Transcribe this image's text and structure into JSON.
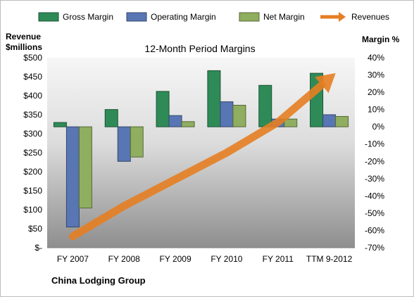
{
  "chart_data": {
    "type": "bar",
    "title": "12-Month Period Margins",
    "company": "China Lodging Group",
    "ylabel_left": [
      "Revenue",
      "$millions"
    ],
    "ylabel_right": "Margin %",
    "categories": [
      "FY 2007",
      "FY 2008",
      "FY 2009",
      "FY 2010",
      "FY 2011",
      "TTM 9-2012"
    ],
    "left_ticks": [
      "$-",
      "$50",
      "$100",
      "$150",
      "$200",
      "$250",
      "$300",
      "$350",
      "$400",
      "$450",
      "$500"
    ],
    "right_ticks": [
      "-70%",
      "-60%",
      "-50%",
      "-40%",
      "-30%",
      "-20%",
      "-10%",
      "0%",
      "10%",
      "20%",
      "30%",
      "40%"
    ],
    "ylim_left": [
      0,
      500
    ],
    "ylim_right": [
      -70,
      40
    ],
    "series": [
      {
        "name": "Gross Margin",
        "axis": "right",
        "color": "#2e8b57",
        "values": [
          2.5,
          10,
          20.5,
          32.5,
          24,
          31
        ]
      },
      {
        "name": "Operating Margin",
        "axis": "right",
        "color": "#5876b3",
        "values": [
          -58,
          -20,
          6.5,
          14.5,
          4.5,
          7
        ]
      },
      {
        "name": "Net Margin",
        "axis": "right",
        "color": "#8fae5f",
        "values": [
          -47,
          -17.5,
          3,
          12.5,
          4.5,
          6
        ]
      },
      {
        "name": "Revenues",
        "axis": "left",
        "type": "line",
        "color": "#e67e22",
        "values": [
          30,
          110,
          180,
          250,
          330,
          445
        ]
      }
    ],
    "legend_position": "top",
    "grid": false
  }
}
